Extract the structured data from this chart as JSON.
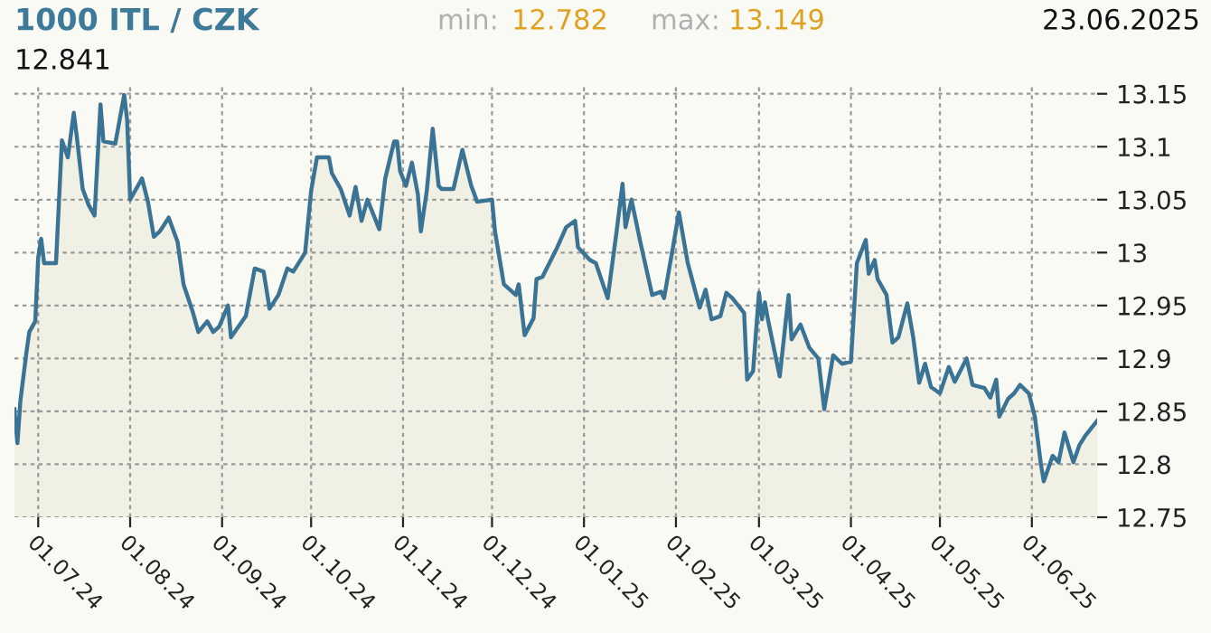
{
  "chart_data": {
    "type": "area",
    "title": "1000 ITL / CZK",
    "annotations": [
      "min:",
      "12.782",
      "max:",
      "13.149",
      "23.06.2025",
      "12.841"
    ],
    "x": [
      "2024-06-23",
      "2024-06-24",
      "2024-06-25",
      "2024-06-27",
      "2024-06-28",
      "2024-06-30",
      "2024-07-01",
      "2024-07-02",
      "2024-07-03",
      "2024-07-07",
      "2024-07-09",
      "2024-07-11",
      "2024-07-13",
      "2024-07-14",
      "2024-07-16",
      "2024-07-18",
      "2024-07-20",
      "2024-07-22",
      "2024-07-23",
      "2024-07-27",
      "2024-07-30",
      "2024-07-31",
      "2024-08-01",
      "2024-08-05",
      "2024-08-07",
      "2024-08-09",
      "2024-08-11",
      "2024-08-14",
      "2024-08-17",
      "2024-08-19",
      "2024-08-22",
      "2024-08-24",
      "2024-08-27",
      "2024-08-29",
      "2024-08-31",
      "2024-09-03",
      "2024-09-04",
      "2024-09-09",
      "2024-09-12",
      "2024-09-15",
      "2024-09-17",
      "2024-09-20",
      "2024-09-23",
      "2024-09-25",
      "2024-09-29",
      "2024-10-01",
      "2024-10-03",
      "2024-10-07",
      "2024-10-08",
      "2024-10-11",
      "2024-10-14",
      "2024-10-16",
      "2024-10-18",
      "2024-10-20",
      "2024-10-24",
      "2024-10-26",
      "2024-10-29",
      "2024-10-30",
      "2024-10-31",
      "2024-11-02",
      "2024-11-04",
      "2024-11-06",
      "2024-11-07",
      "2024-11-09",
      "2024-11-11",
      "2024-11-13",
      "2024-11-14",
      "2024-11-18",
      "2024-11-21",
      "2024-11-24",
      "2024-11-26",
      "2024-12-01",
      "2024-12-02",
      "2024-12-05",
      "2024-12-09",
      "2024-12-10",
      "2024-12-12",
      "2024-12-15",
      "2024-12-16",
      "2024-12-18",
      "2024-12-23",
      "2024-12-26",
      "2024-12-29",
      "2024-12-30",
      "2025-01-03",
      "2025-01-05",
      "2025-01-09",
      "2025-01-12",
      "2025-01-14",
      "2025-01-15",
      "2025-01-17",
      "2025-01-20",
      "2025-01-24",
      "2025-01-27",
      "2025-01-28",
      "2025-01-31",
      "2025-02-02",
      "2025-02-05",
      "2025-02-09",
      "2025-02-11",
      "2025-02-13",
      "2025-02-16",
      "2025-02-18",
      "2025-02-20",
      "2025-02-24",
      "2025-02-25",
      "2025-02-27",
      "2025-03-01",
      "2025-03-02",
      "2025-03-03",
      "2025-03-04",
      "2025-03-08",
      "2025-03-11",
      "2025-03-12",
      "2025-03-15",
      "2025-03-18",
      "2025-03-21",
      "2025-03-23",
      "2025-03-26",
      "2025-03-29",
      "2025-04-01",
      "2025-04-03",
      "2025-04-06",
      "2025-04-07",
      "2025-04-09",
      "2025-04-10",
      "2025-04-13",
      "2025-04-15",
      "2025-04-17",
      "2025-04-20",
      "2025-04-22",
      "2025-04-24",
      "2025-04-26",
      "2025-04-28",
      "2025-05-01",
      "2025-05-04",
      "2025-05-06",
      "2025-05-10",
      "2025-05-12",
      "2025-05-16",
      "2025-05-18",
      "2025-05-20",
      "2025-05-21",
      "2025-05-24",
      "2025-05-26",
      "2025-05-28",
      "2025-05-31",
      "2025-06-02",
      "2025-06-04",
      "2025-06-05",
      "2025-06-08",
      "2025-06-10",
      "2025-06-12",
      "2025-06-15",
      "2025-06-17",
      "2025-06-19",
      "2025-06-23"
    ],
    "series": [
      {
        "color": "#3a7394",
        "values": [
          12.852,
          12.82,
          12.86,
          12.905,
          12.925,
          12.935,
          12.995,
          13.013,
          12.99,
          12.99,
          13.106,
          13.09,
          13.132,
          13.11,
          13.06,
          13.045,
          13.035,
          13.14,
          13.105,
          13.103,
          13.149,
          13.125,
          13.05,
          13.07,
          13.048,
          13.015,
          13.02,
          13.033,
          13.01,
          12.97,
          12.945,
          12.925,
          12.935,
          12.925,
          12.93,
          12.95,
          12.92,
          12.94,
          12.985,
          12.982,
          12.947,
          12.96,
          12.985,
          12.982,
          13.0,
          13.058,
          13.09,
          13.09,
          13.075,
          13.06,
          13.035,
          13.062,
          13.03,
          13.05,
          13.022,
          13.07,
          13.105,
          13.105,
          13.077,
          13.063,
          13.085,
          13.055,
          13.02,
          13.058,
          13.117,
          13.063,
          13.06,
          13.06,
          13.097,
          13.063,
          13.048,
          13.05,
          13.02,
          12.97,
          12.96,
          12.97,
          12.922,
          12.938,
          12.975,
          12.977,
          13.005,
          13.024,
          13.03,
          13.005,
          12.993,
          12.99,
          12.957,
          13.02,
          13.065,
          13.024,
          13.05,
          13.01,
          12.96,
          12.963,
          12.957,
          13.005,
          13.038,
          12.99,
          12.948,
          12.965,
          12.937,
          12.94,
          12.962,
          12.957,
          12.943,
          12.88,
          12.888,
          12.962,
          12.937,
          12.953,
          12.937,
          12.883,
          12.96,
          12.918,
          12.932,
          12.91,
          12.9,
          12.852,
          12.903,
          12.895,
          12.897,
          12.99,
          13.012,
          12.98,
          12.993,
          12.975,
          12.96,
          12.915,
          12.92,
          12.952,
          12.92,
          12.877,
          12.895,
          12.873,
          12.867,
          12.892,
          12.878,
          12.9,
          12.875,
          12.872,
          12.863,
          12.88,
          12.845,
          12.862,
          12.867,
          12.875,
          12.867,
          12.845,
          12.801,
          12.784,
          12.808,
          12.802,
          12.83,
          12.802,
          12.818,
          12.827,
          12.841
        ]
      }
    ],
    "xlim": [
      "2024-06-23",
      "2025-06-23"
    ],
    "xticks": [
      {
        "value": "2024-07-01",
        "label": "01.07.24"
      },
      {
        "value": "2024-08-01",
        "label": "01.08.24"
      },
      {
        "value": "2024-09-01",
        "label": "01.09.24"
      },
      {
        "value": "2024-10-01",
        "label": "01.10.24"
      },
      {
        "value": "2024-11-01",
        "label": "01.11.24"
      },
      {
        "value": "2024-12-01",
        "label": "01.12.24"
      },
      {
        "value": "2025-01-01",
        "label": "01.01.25"
      },
      {
        "value": "2025-02-01",
        "label": "01.02.25"
      },
      {
        "value": "2025-03-01",
        "label": "01.03.25"
      },
      {
        "value": "2025-04-01",
        "label": "01.04.25"
      },
      {
        "value": "2025-05-01",
        "label": "01.05.25"
      },
      {
        "value": "2025-06-01",
        "label": "01.06.25"
      }
    ],
    "ylim": [
      12.75,
      13.16
    ],
    "yticks": [
      12.75,
      12.8,
      12.85,
      12.9,
      12.95,
      13,
      13.05,
      13.1,
      13.15
    ],
    "grid": true,
    "legend": false
  }
}
